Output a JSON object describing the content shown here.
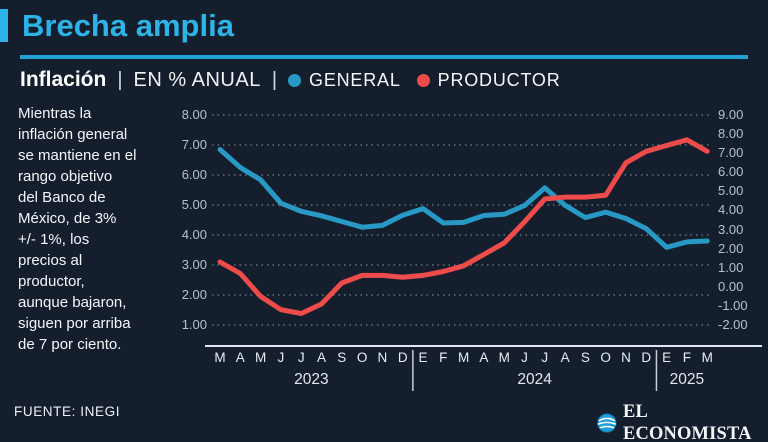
{
  "header": {
    "title": "Brecha amplia",
    "subtitle_bold": "Inflación",
    "pipe": "|",
    "subtitle_rest": "EN % ANUAL"
  },
  "legend": [
    {
      "name": "GENERAL",
      "color": "#2899c5"
    },
    {
      "name": "PRODUCTOR",
      "color": "#ee4b4b"
    }
  ],
  "annotation_lines": [
    "Mientras la",
    "inflación general",
    "se mantiene en el",
    "rango objetivo",
    "del Banco de",
    "México, de 3%",
    "+/- 1%, los",
    "precios al",
    "productor,",
    "aunque bajaron,",
    "siguen por arriba",
    "de 7 por ciento."
  ],
  "source": "FUENTE: INEGI",
  "brand": "EL ECONOMISTA",
  "colors": {
    "background": "#141e2d",
    "accent_cyan": "#2cb4e8",
    "general_line": "#2899c5",
    "productor_line": "#ee4b4b",
    "gridline": "#b9c2cf",
    "axis_line": "#dfe5ec"
  },
  "chart_data": {
    "type": "line",
    "title": "Inflación | EN % ANUAL",
    "x_labels": [
      "M",
      "A",
      "M",
      "J",
      "J",
      "A",
      "S",
      "O",
      "N",
      "D",
      "E",
      "F",
      "M",
      "A",
      "M",
      "J",
      "J",
      "A",
      "S",
      "O",
      "N",
      "D",
      "E",
      "F",
      "M"
    ],
    "year_groups": [
      {
        "label": "2023",
        "start": 0,
        "end": 9
      },
      {
        "label": "2024",
        "start": 10,
        "end": 21
      },
      {
        "label": "2025",
        "start": 22,
        "end": 24
      }
    ],
    "left_axis": {
      "min": 1,
      "max": 8,
      "tick_labels": [
        "8.00",
        "7.00",
        "6.00",
        "5.00",
        "4.00",
        "3.00",
        "2.00",
        "1.00"
      ]
    },
    "right_axis": {
      "min": -2,
      "max": 9,
      "tick_labels": [
        "9.00",
        "8.00",
        "7.00",
        "6.00",
        "5.00",
        "4.00",
        "3.00",
        "2.00",
        "1.00",
        "0.00",
        "-1.00",
        "-2.00"
      ]
    },
    "grid": "horizontal-dotted",
    "legend_position": "top",
    "series": [
      {
        "name": "GENERAL",
        "axis": "left",
        "color": "#2899c5",
        "values": [
          6.85,
          6.25,
          5.84,
          5.06,
          4.79,
          4.64,
          4.45,
          4.26,
          4.32,
          4.66,
          4.88,
          4.4,
          4.42,
          4.65,
          4.69,
          4.98,
          5.57,
          4.99,
          4.58,
          4.76,
          4.55,
          4.21,
          3.59,
          3.77,
          3.8
        ]
      },
      {
        "name": "PRODUCTOR",
        "axis": "right",
        "color": "#ee4b4b",
        "values": [
          1.3,
          0.7,
          -0.5,
          -1.2,
          -1.4,
          -0.9,
          0.2,
          0.6,
          0.6,
          0.5,
          0.6,
          0.8,
          1.1,
          1.7,
          2.3,
          3.4,
          4.6,
          4.7,
          4.7,
          4.8,
          6.5,
          7.1,
          7.4,
          7.7,
          7.1
        ]
      }
    ]
  }
}
